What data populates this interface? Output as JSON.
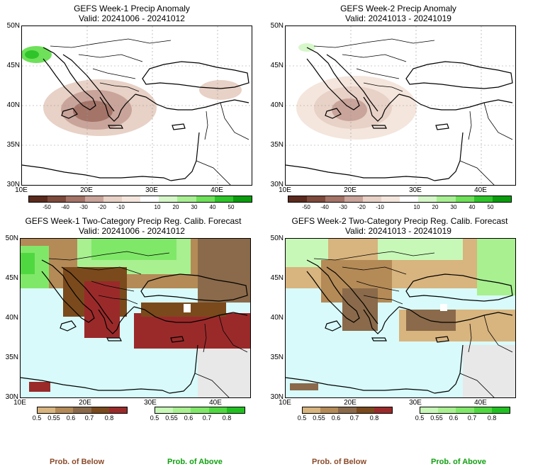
{
  "panels": {
    "p1": {
      "title": "GEFS Week-1 Precip Anomaly",
      "valid": "Valid: 20241006 - 20241012"
    },
    "p2": {
      "title": "GEFS Week-2 Precip Anomaly",
      "valid": "Valid: 20241013 - 20241019"
    },
    "p3": {
      "title": "GEFS Week-1 Two-Category Precip Reg. Calib. Forecast",
      "valid": "Valid: 20241006 - 20241012"
    },
    "p4": {
      "title": "GEFS Week-2 Two-Category Precip Reg. Calib. Forecast",
      "valid": "Valid: 20241013 - 20241019"
    }
  },
  "axes": {
    "lat": [
      "50N",
      "45N",
      "40N",
      "35N",
      "30N"
    ],
    "lon": [
      "10E",
      "20E",
      "30E",
      "40E"
    ]
  },
  "anomaly_scale": {
    "labels": [
      "-50",
      "-40",
      "-30",
      "-20",
      "-10",
      "10",
      "20",
      "30",
      "40",
      "50"
    ],
    "colors": [
      "#5a2a1e",
      "#7d4a3c",
      "#a47468",
      "#c9a49a",
      "#e8d1c6",
      "#f4e6dd",
      "#ffffff",
      "#d6f7c9",
      "#a8ef93",
      "#6ee05a",
      "#2fc42a",
      "#0a9c0e"
    ]
  },
  "prob_scale": {
    "below_labels": [
      "0.5",
      "0.55",
      "0.6",
      "0.7",
      "0.8"
    ],
    "above_labels": [
      "0.5",
      "0.55",
      "0.6",
      "0.7",
      "0.8"
    ],
    "below_colors": [
      "#d8b47e",
      "#b48a57",
      "#8a6a4a",
      "#7a4a1c",
      "#9a2a2a"
    ],
    "above_colors": [
      "#c8f8b8",
      "#a8f090",
      "#80e868",
      "#50d840",
      "#20c020"
    ]
  },
  "legend": {
    "below": "Prob. of Below",
    "above": "Prob. of Above",
    "below_color": "#8a4a2a",
    "above_color": "#10a010"
  }
}
